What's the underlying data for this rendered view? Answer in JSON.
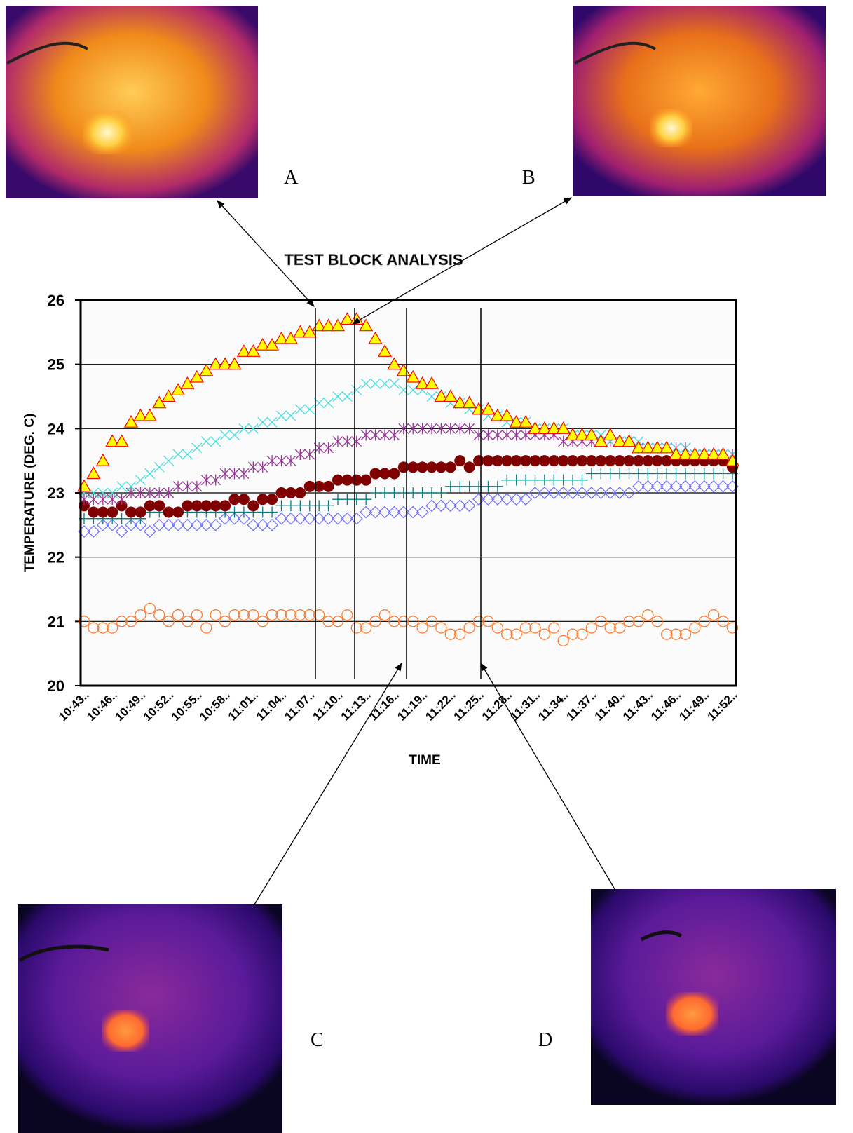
{
  "chart_data": {
    "type": "scatter",
    "title": "TEST BLOCK ANALYSIS",
    "x_label": "TIME",
    "y_label": "TEMPERATURE (DEG. C)",
    "categories": [
      "10:43..",
      null,
      null,
      "10:46..",
      null,
      null,
      "10:49..",
      null,
      null,
      "10:52..",
      null,
      null,
      "10:55..",
      null,
      null,
      "10:58..",
      null,
      null,
      "11:01..",
      null,
      null,
      "11:04..",
      null,
      null,
      "11:07..",
      null,
      null,
      "11:10..",
      null,
      null,
      "11:13..",
      null,
      null,
      "11:16..",
      null,
      null,
      "11:19..",
      null,
      null,
      "11:22..",
      null,
      null,
      "11:25..",
      null,
      null,
      "11:28..",
      null,
      null,
      "11:31..",
      null,
      null,
      "11:34..",
      null,
      null,
      "11:37..",
      null,
      null,
      "11:40..",
      null,
      null,
      "11:43..",
      null,
      null,
      "11:46..",
      null,
      null,
      "11:49..",
      null,
      null,
      "11:52.."
    ],
    "ylim": [
      20,
      26
    ],
    "yticks": [
      20,
      21,
      22,
      23,
      24,
      25,
      26
    ],
    "grid": true,
    "series": [
      {
        "marker": "open-circle",
        "color": "#ff7a2e",
        "values": [
          21.0,
          20.9,
          20.9,
          20.9,
          21.0,
          21.0,
          21.1,
          21.2,
          21.1,
          21.0,
          21.1,
          21.0,
          21.1,
          20.9,
          21.1,
          21.0,
          21.1,
          21.1,
          21.1,
          21.0,
          21.1,
          21.1,
          21.1,
          21.1,
          21.1,
          21.1,
          21.0,
          21.0,
          21.1,
          20.9,
          20.9,
          21.0,
          21.1,
          21.0,
          21.0,
          21.0,
          20.9,
          21.0,
          20.9,
          20.8,
          20.8,
          20.9,
          21.0,
          21.0,
          20.9,
          20.8,
          20.8,
          20.9,
          20.9,
          20.8,
          20.9,
          20.7,
          20.8,
          20.8,
          20.9,
          21.0,
          20.9,
          20.9,
          21.0,
          21.0,
          21.1,
          21.0,
          20.8,
          20.8,
          20.8,
          20.9,
          21.0,
          21.1,
          21.0,
          20.9
        ]
      },
      {
        "marker": "diamond",
        "color": "#6a6aff",
        "values": [
          22.4,
          22.4,
          22.5,
          22.5,
          22.4,
          22.5,
          22.5,
          22.4,
          22.5,
          22.5,
          22.5,
          22.5,
          22.5,
          22.5,
          22.5,
          22.6,
          22.6,
          22.6,
          22.5,
          22.5,
          22.5,
          22.6,
          22.6,
          22.6,
          22.6,
          22.6,
          22.6,
          22.6,
          22.6,
          22.6,
          22.7,
          22.7,
          22.7,
          22.7,
          22.7,
          22.7,
          22.7,
          22.8,
          22.8,
          22.8,
          22.8,
          22.8,
          22.9,
          22.9,
          22.9,
          22.9,
          22.9,
          22.9,
          23.0,
          23.0,
          23.0,
          23.0,
          23.0,
          23.0,
          23.0,
          23.0,
          23.0,
          23.0,
          23.0,
          23.1,
          23.1,
          23.1,
          23.1,
          23.1,
          23.1,
          23.1,
          23.1,
          23.1,
          23.1,
          23.1
        ]
      },
      {
        "marker": "plus",
        "color": "#008080",
        "values": [
          22.6,
          22.6,
          22.6,
          22.6,
          22.6,
          22.6,
          22.6,
          22.7,
          22.7,
          22.7,
          22.7,
          22.7,
          22.7,
          22.7,
          22.7,
          22.7,
          22.7,
          22.7,
          22.7,
          22.7,
          22.7,
          22.8,
          22.8,
          22.8,
          22.8,
          22.8,
          22.8,
          22.9,
          22.9,
          22.9,
          22.9,
          23.0,
          23.0,
          23.0,
          23.0,
          23.0,
          23.0,
          23.0,
          23.0,
          23.1,
          23.1,
          23.1,
          23.1,
          23.1,
          23.1,
          23.2,
          23.2,
          23.2,
          23.2,
          23.2,
          23.2,
          23.2,
          23.2,
          23.2,
          23.3,
          23.3,
          23.3,
          23.3,
          23.3,
          23.3,
          23.3,
          23.3,
          23.3,
          23.3,
          23.3,
          23.3,
          23.3,
          23.3,
          23.3,
          23.3
        ]
      },
      {
        "marker": "filled-circle",
        "color": "#800000",
        "values": [
          22.8,
          22.7,
          22.7,
          22.7,
          22.8,
          22.7,
          22.7,
          22.8,
          22.8,
          22.7,
          22.7,
          22.8,
          22.8,
          22.8,
          22.8,
          22.8,
          22.9,
          22.9,
          22.8,
          22.9,
          22.9,
          23.0,
          23.0,
          23.0,
          23.1,
          23.1,
          23.1,
          23.2,
          23.2,
          23.2,
          23.2,
          23.3,
          23.3,
          23.3,
          23.4,
          23.4,
          23.4,
          23.4,
          23.4,
          23.4,
          23.5,
          23.4,
          23.5,
          23.5,
          23.5,
          23.5,
          23.5,
          23.5,
          23.5,
          23.5,
          23.5,
          23.5,
          23.5,
          23.5,
          23.5,
          23.5,
          23.5,
          23.5,
          23.5,
          23.5,
          23.5,
          23.5,
          23.5,
          23.5,
          23.5,
          23.5,
          23.5,
          23.5,
          23.5,
          23.4
        ]
      },
      {
        "marker": "star",
        "color": "#993399",
        "values": [
          22.9,
          22.9,
          22.9,
          22.9,
          22.9,
          23.0,
          23.0,
          23.0,
          23.0,
          23.0,
          23.1,
          23.1,
          23.1,
          23.2,
          23.2,
          23.3,
          23.3,
          23.3,
          23.4,
          23.4,
          23.5,
          23.5,
          23.5,
          23.6,
          23.6,
          23.7,
          23.7,
          23.8,
          23.8,
          23.8,
          23.9,
          23.9,
          23.9,
          23.9,
          24.0,
          24.0,
          24.0,
          24.0,
          24.0,
          24.0,
          24.0,
          24.0,
          23.9,
          23.9,
          23.9,
          23.9,
          23.9,
          23.9,
          23.9,
          23.9,
          23.9,
          23.8,
          23.8,
          23.8,
          23.8,
          23.8,
          23.8,
          23.8,
          23.8,
          23.7,
          23.7,
          23.7,
          23.7,
          23.7,
          23.7,
          23.6,
          23.6,
          23.6,
          23.6,
          23.6
        ]
      },
      {
        "marker": "cross",
        "color": "#44dddd",
        "values": [
          23.0,
          23.0,
          23.0,
          23.0,
          23.1,
          23.1,
          23.2,
          23.3,
          23.4,
          23.5,
          23.6,
          23.6,
          23.7,
          23.8,
          23.8,
          23.9,
          23.9,
          24.0,
          24.0,
          24.1,
          24.1,
          24.2,
          24.2,
          24.3,
          24.3,
          24.4,
          24.4,
          24.5,
          24.5,
          24.6,
          24.7,
          24.7,
          24.7,
          24.7,
          24.6,
          24.6,
          24.6,
          24.5,
          24.5,
          24.4,
          24.4,
          24.3,
          24.3,
          24.2,
          24.2,
          24.1,
          24.1,
          24.1,
          24.0,
          24.0,
          24.0,
          24.0,
          23.9,
          23.9,
          23.9,
          23.9,
          23.8,
          23.8,
          23.8,
          23.8,
          23.7,
          23.7,
          23.7,
          23.7,
          23.7,
          23.6,
          23.6,
          23.6,
          23.6,
          23.6
        ]
      },
      {
        "marker": "triangle",
        "color": "#ffff00",
        "edge": "#ff0000",
        "values": [
          23.1,
          23.3,
          23.5,
          23.8,
          23.8,
          24.1,
          24.2,
          24.2,
          24.4,
          24.5,
          24.6,
          24.7,
          24.8,
          24.9,
          25.0,
          25.0,
          25.0,
          25.2,
          25.2,
          25.3,
          25.3,
          25.4,
          25.4,
          25.5,
          25.5,
          25.6,
          25.6,
          25.6,
          25.7,
          25.7,
          25.6,
          25.4,
          25.2,
          25.0,
          24.9,
          24.8,
          24.7,
          24.7,
          24.5,
          24.5,
          24.4,
          24.4,
          24.3,
          24.3,
          24.2,
          24.2,
          24.1,
          24.1,
          24.0,
          24.0,
          24.0,
          24.0,
          23.9,
          23.9,
          23.9,
          23.8,
          23.9,
          23.8,
          23.8,
          23.7,
          23.7,
          23.7,
          23.7,
          23.6,
          23.6,
          23.6,
          23.6,
          23.6,
          23.6,
          23.5
        ]
      }
    ]
  },
  "image_labels": [
    "A",
    "B",
    "C",
    "D"
  ]
}
